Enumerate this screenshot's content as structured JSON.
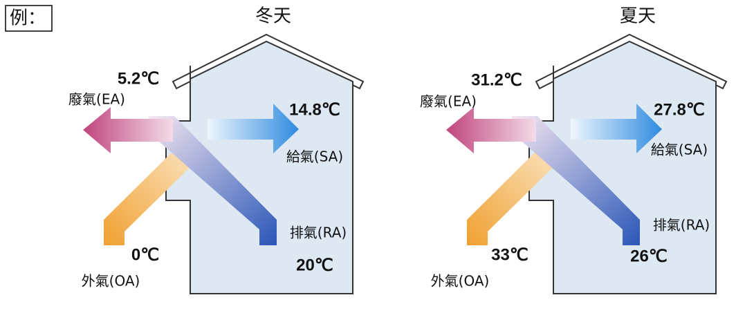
{
  "label": "例：",
  "panels": [
    {
      "title": "冬天",
      "ea_temp": "5.2℃",
      "ea_label": "廢氣(EA)",
      "sa_temp": "14.8℃",
      "sa_label": "給氣(SA)",
      "ra_label": "排氣(RA)",
      "oa_temp": "0℃",
      "ra_temp": "20℃",
      "oa_label": "外氣(OA)"
    },
    {
      "title": "夏天",
      "ea_temp": "31.2℃",
      "ea_label": "廢氣(EA)",
      "sa_temp": "27.8℃",
      "sa_label": "給氣(SA)",
      "ra_label": "排氣(RA)",
      "oa_temp": "33℃",
      "ra_temp": "26℃",
      "oa_label": "外氣(OA)"
    }
  ]
}
